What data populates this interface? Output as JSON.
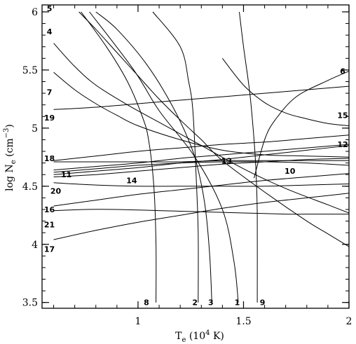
{
  "chart_data": {
    "type": "line",
    "xlabel_parts": {
      "main": "T",
      "sub": "e",
      "paren_open": " (10",
      "sup": "4",
      "paren_close": " K)"
    },
    "ylabel_parts": {
      "main": "log N",
      "sub": "e",
      "paren_open": " (cm",
      "sup": "−3",
      "paren_close": ")"
    },
    "xlim": [
      0.545,
      2.0
    ],
    "ylim": [
      3.45,
      6.06
    ],
    "x_ticks": [
      {
        "value": 1,
        "label": "1"
      },
      {
        "value": 1.5,
        "label": "1.5"
      },
      {
        "value": 2,
        "label": "2"
      }
    ],
    "y_ticks": [
      {
        "value": 3.5,
        "label": "3.5"
      },
      {
        "value": 4,
        "label": "4"
      },
      {
        "value": 4.5,
        "label": "4.5"
      },
      {
        "value": 5,
        "label": "5"
      },
      {
        "value": 5.5,
        "label": "5.5"
      },
      {
        "value": 6,
        "label": "6"
      }
    ],
    "x_minor_step": 0.1,
    "y_minor_step": 0.1,
    "grid": false,
    "series": [
      {
        "label": "1",
        "label_at": [
          1.47,
          3.5
        ],
        "points": [
          [
            1.475,
            3.5
          ],
          [
            1.455,
            3.85
          ],
          [
            1.4,
            4.3
          ],
          [
            1.27,
            4.75
          ],
          [
            1.1,
            5.15
          ],
          [
            0.98,
            5.5
          ],
          [
            0.77,
            6.0
          ]
        ]
      },
      {
        "label": "2",
        "label_at": [
          1.27,
          3.5
        ],
        "points": [
          [
            1.285,
            3.5
          ],
          [
            1.285,
            4.1
          ],
          [
            1.275,
            4.6
          ],
          [
            1.26,
            5.15
          ],
          [
            1.24,
            5.4
          ],
          [
            1.2,
            5.7
          ],
          [
            1.07,
            6.0
          ]
        ]
      },
      {
        "label": "3",
        "label_at": [
          1.345,
          3.5
        ],
        "points": [
          [
            1.35,
            3.5
          ],
          [
            1.34,
            3.9
          ],
          [
            1.32,
            4.3
          ],
          [
            1.29,
            4.6
          ],
          [
            1.25,
            4.85
          ],
          [
            1.16,
            5.2
          ],
          [
            1.04,
            5.55
          ],
          [
            0.9,
            5.85
          ],
          [
            0.8,
            6.0
          ]
        ]
      },
      {
        "label": "4",
        "label_at": [
          0.58,
          5.83
        ],
        "points": [
          [
            0.6,
            5.73
          ],
          [
            0.7,
            5.53
          ],
          [
            0.8,
            5.37
          ],
          [
            0.95,
            5.2
          ],
          [
            1.1,
            5.05
          ],
          [
            1.3,
            4.85
          ],
          [
            1.5,
            4.65
          ],
          [
            1.7,
            4.48
          ],
          [
            1.9,
            4.34
          ],
          [
            2.0,
            4.27
          ]
        ]
      },
      {
        "label": "5",
        "label_at": [
          0.58,
          6.03
        ],
        "points": [
          [
            0.72,
            6.0
          ],
          [
            0.8,
            5.85
          ],
          [
            0.9,
            5.65
          ],
          [
            1.0,
            5.45
          ],
          [
            1.1,
            5.25
          ],
          [
            1.2,
            5.07
          ],
          [
            1.3,
            4.9
          ],
          [
            1.4,
            4.72
          ],
          [
            1.6,
            4.45
          ],
          [
            1.8,
            4.2
          ],
          [
            1.9,
            4.09
          ],
          [
            2.0,
            3.98
          ]
        ]
      },
      {
        "label": "6",
        "label_at": [
          1.97,
          5.49
        ],
        "points": [
          [
            1.55,
            4.57
          ],
          [
            1.6,
            4.9
          ],
          [
            1.65,
            5.07
          ],
          [
            1.75,
            5.27
          ],
          [
            1.9,
            5.41
          ],
          [
            2.0,
            5.49
          ]
        ]
      },
      {
        "label": "7",
        "label_at": [
          0.58,
          5.31
        ],
        "points": [
          [
            0.6,
            5.48
          ],
          [
            0.7,
            5.33
          ],
          [
            0.8,
            5.21
          ],
          [
            0.9,
            5.11
          ],
          [
            1.0,
            5.02
          ],
          [
            1.2,
            4.9
          ],
          [
            1.4,
            4.81
          ],
          [
            1.6,
            4.77
          ],
          [
            1.8,
            4.76
          ],
          [
            2.0,
            4.75
          ]
        ]
      },
      {
        "label": "8",
        "label_at": [
          1.04,
          3.5
        ],
        "points": [
          [
            1.085,
            3.5
          ],
          [
            1.085,
            4.0
          ],
          [
            1.075,
            4.5
          ],
          [
            1.05,
            4.9
          ],
          [
            1.02,
            5.1
          ],
          [
            0.95,
            5.4
          ],
          [
            0.85,
            5.7
          ],
          [
            0.73,
            6.0
          ]
        ]
      },
      {
        "label": "9",
        "label_at": [
          1.59,
          3.5
        ],
        "points": [
          [
            1.565,
            3.5
          ],
          [
            1.565,
            4.25
          ],
          [
            1.56,
            4.6
          ],
          [
            1.55,
            4.9
          ],
          [
            1.53,
            5.3
          ],
          [
            1.5,
            5.7
          ],
          [
            1.48,
            6.0
          ]
        ]
      },
      {
        "label": "10",
        "label_at": [
          1.72,
          4.63
        ],
        "points": [
          [
            1.4,
            5.6
          ],
          [
            1.5,
            5.37
          ],
          [
            1.6,
            5.22
          ],
          [
            1.7,
            5.13
          ],
          [
            1.8,
            5.08
          ],
          [
            1.9,
            5.04
          ],
          [
            2.0,
            5.02
          ]
        ]
      },
      {
        "label": "11",
        "label_at": [
          0.66,
          4.6
        ],
        "points": [
          [
            0.6,
            4.58
          ],
          [
            0.8,
            4.6
          ],
          [
            1.0,
            4.63
          ],
          [
            1.2,
            4.66
          ],
          [
            1.4,
            4.69
          ],
          [
            1.6,
            4.71
          ],
          [
            1.8,
            4.73
          ],
          [
            2.0,
            4.74
          ]
        ]
      },
      {
        "label": "12",
        "label_at": [
          1.97,
          4.86
        ],
        "points": [
          [
            0.6,
            4.6
          ],
          [
            0.8,
            4.63
          ],
          [
            1.0,
            4.66
          ],
          [
            1.2,
            4.7
          ],
          [
            1.4,
            4.73
          ],
          [
            1.6,
            4.77
          ],
          [
            1.8,
            4.81
          ],
          [
            2.0,
            4.85
          ]
        ]
      },
      {
        "label": "13",
        "label_at": [
          1.42,
          4.72
        ],
        "points": [
          [
            0.6,
            4.62
          ],
          [
            0.8,
            4.65
          ],
          [
            1.0,
            4.68
          ],
          [
            1.2,
            4.7
          ],
          [
            1.4,
            4.71
          ],
          [
            1.6,
            4.71
          ],
          [
            1.8,
            4.7
          ],
          [
            2.0,
            4.68
          ]
        ]
      },
      {
        "label": "14",
        "label_at": [
          0.97,
          4.55
        ],
        "points": [
          [
            0.6,
            4.64
          ],
          [
            0.8,
            4.67
          ],
          [
            1.0,
            4.7
          ],
          [
            1.2,
            4.74
          ],
          [
            1.4,
            4.77
          ],
          [
            1.6,
            4.8
          ],
          [
            1.8,
            4.83
          ],
          [
            2.0,
            4.86
          ]
        ]
      },
      {
        "label": "15",
        "label_at": [
          1.97,
          5.11
        ],
        "points": [
          [
            0.6,
            4.72
          ],
          [
            0.8,
            4.76
          ],
          [
            1.0,
            4.8
          ],
          [
            1.2,
            4.83
          ],
          [
            1.4,
            4.86
          ],
          [
            1.6,
            4.88
          ],
          [
            1.8,
            4.91
          ],
          [
            2.0,
            4.94
          ]
        ]
      },
      {
        "label": "16",
        "label_at": [
          0.58,
          4.3
        ],
        "points": [
          [
            0.6,
            4.33
          ],
          [
            0.8,
            4.38
          ],
          [
            1.0,
            4.43
          ],
          [
            1.2,
            4.47
          ],
          [
            1.4,
            4.51
          ],
          [
            1.6,
            4.55
          ],
          [
            1.8,
            4.58
          ],
          [
            2.0,
            4.61
          ]
        ]
      },
      {
        "label": "17",
        "label_at": [
          0.58,
          3.96
        ],
        "points": [
          [
            0.6,
            4.04
          ],
          [
            0.8,
            4.12
          ],
          [
            1.0,
            4.19
          ],
          [
            1.2,
            4.25
          ],
          [
            1.4,
            4.31
          ],
          [
            1.6,
            4.36
          ],
          [
            1.8,
            4.4
          ],
          [
            2.0,
            4.44
          ]
        ]
      },
      {
        "label": "18",
        "label_at": [
          0.58,
          4.74
        ],
        "points": [
          [
            0.6,
            4.71
          ],
          [
            0.8,
            4.71
          ],
          [
            1.0,
            4.71
          ],
          [
            1.2,
            4.71
          ],
          [
            1.4,
            4.72
          ],
          [
            1.6,
            4.72
          ],
          [
            1.8,
            4.72
          ],
          [
            2.0,
            4.72
          ]
        ]
      },
      {
        "label": "19",
        "label_at": [
          0.58,
          5.09
        ],
        "points": [
          [
            0.6,
            5.16
          ],
          [
            0.8,
            5.18
          ],
          [
            1.0,
            5.21
          ],
          [
            1.2,
            5.24
          ],
          [
            1.4,
            5.27
          ],
          [
            1.6,
            5.3
          ],
          [
            1.8,
            5.33
          ],
          [
            2.0,
            5.36
          ]
        ]
      },
      {
        "label": "20",
        "label_at": [
          0.61,
          4.46
        ],
        "points": [
          [
            0.6,
            4.53
          ],
          [
            0.8,
            4.51
          ],
          [
            1.0,
            4.5
          ],
          [
            1.2,
            4.5
          ],
          [
            1.4,
            4.5
          ],
          [
            1.6,
            4.5
          ],
          [
            1.8,
            4.51
          ],
          [
            2.0,
            4.52
          ]
        ]
      },
      {
        "label": "21",
        "label_at": [
          0.58,
          4.17
        ],
        "points": [
          [
            0.6,
            4.29
          ],
          [
            0.75,
            4.3
          ],
          [
            0.9,
            4.3
          ],
          [
            1.1,
            4.29
          ],
          [
            1.3,
            4.28
          ],
          [
            1.5,
            4.27
          ],
          [
            1.7,
            4.26
          ],
          [
            1.85,
            4.26
          ],
          [
            2.0,
            4.26
          ]
        ]
      }
    ]
  }
}
